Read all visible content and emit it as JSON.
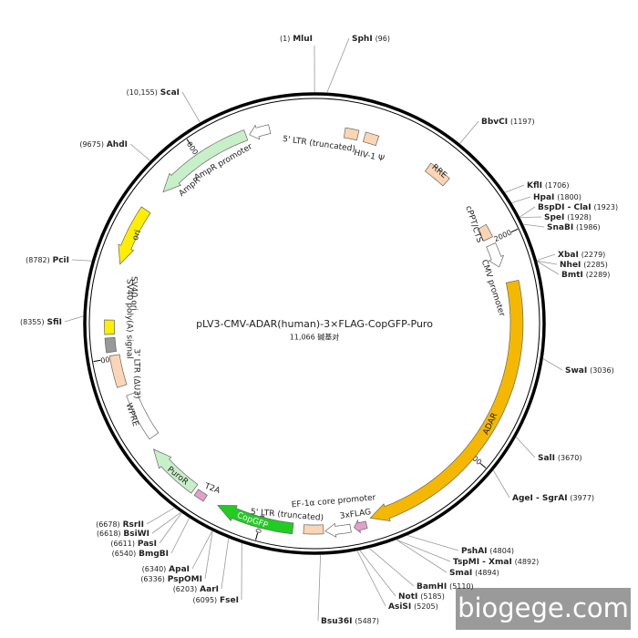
{
  "title": "pLV3-CMV-ADAR(human)-3×FLAG-CopGFP-Puro",
  "length": {
    "value": 11066,
    "label": "11,066 碱基对"
  },
  "ticks": [
    2000,
    4000,
    6000,
    8000,
    {
      "value": 10000,
      "label": "10,000"
    }
  ],
  "sites": [
    {
      "name": "MluI",
      "pos": {
        "value": 1,
        "label": "(1)"
      }
    },
    {
      "name": "SphI",
      "pos": {
        "value": 96,
        "label": "(96)"
      }
    },
    {
      "name": "BbvCI",
      "pos": {
        "value": 1197,
        "label": "(1197)"
      }
    },
    {
      "name": "KflI",
      "pos": {
        "value": 1706,
        "label": "(1706)"
      }
    },
    {
      "name": "HpaI",
      "pos": {
        "value": 1800,
        "label": "(1800)"
      }
    },
    {
      "name": "BspDI - ClaI",
      "pos": {
        "value": 1923,
        "label": "(1923)"
      }
    },
    {
      "name": "SpeI",
      "pos": {
        "value": 1928,
        "label": "(1928)"
      }
    },
    {
      "name": "SnaBI",
      "pos": {
        "value": 1986,
        "label": "(1986)"
      }
    },
    {
      "name": "XbaI",
      "pos": {
        "value": 2279,
        "label": "(2279)"
      }
    },
    {
      "name": "NheI",
      "pos": {
        "value": 2285,
        "label": "(2285)"
      }
    },
    {
      "name": "BmtI",
      "pos": {
        "value": 2289,
        "label": "(2289)"
      }
    },
    {
      "name": "SwaI",
      "pos": {
        "value": 3036,
        "label": "(3036)"
      }
    },
    {
      "name": "SalI",
      "pos": {
        "value": 3670,
        "label": "(3670)"
      }
    },
    {
      "name": "AgeI - SgrAI",
      "pos": {
        "value": 3977,
        "label": "(3977)"
      }
    },
    {
      "name": "PshAI",
      "pos": {
        "value": 4804,
        "label": "(4804)"
      }
    },
    {
      "name": "TspMI - XmaI",
      "pos": {
        "value": 4892,
        "label": "(4892)"
      }
    },
    {
      "name": "SmaI",
      "pos": {
        "value": 4894,
        "label": "(4894)"
      }
    },
    {
      "name": "BamHI",
      "pos": {
        "value": 5110,
        "label": "(5110)"
      }
    },
    {
      "name": "NotI",
      "pos": {
        "value": 5185,
        "label": "(5185)"
      }
    },
    {
      "name": "AsiSI",
      "pos": {
        "value": 5205,
        "label": "(5205)"
      }
    },
    {
      "name": "Bsu36I",
      "pos": {
        "value": 5487,
        "label": "(5487)"
      }
    },
    {
      "name": "FseI",
      "pos": {
        "value": 6095,
        "label": "(6095)"
      }
    },
    {
      "name": "AarI",
      "pos": {
        "value": 6203,
        "label": "(6203)"
      }
    },
    {
      "name": "PspOMI",
      "pos": {
        "value": 6336,
        "label": "(6336)"
      }
    },
    {
      "name": "ApaI",
      "pos": {
        "value": 6340,
        "label": "(6340)"
      }
    },
    {
      "name": "BmgBI",
      "pos": {
        "value": 6540,
        "label": "(6540)"
      }
    },
    {
      "name": "PasI",
      "pos": {
        "value": 6611,
        "label": "(6611)"
      }
    },
    {
      "name": "BsiWI",
      "pos": {
        "value": 6618,
        "label": "(6618)"
      }
    },
    {
      "name": "RsrII",
      "pos": {
        "value": 6678,
        "label": "(6678)"
      }
    },
    {
      "name": "SfiI",
      "pos": {
        "value": 8355,
        "label": "(8355)"
      }
    },
    {
      "name": "PciI",
      "pos": {
        "value": 8782,
        "label": "(8782)"
      }
    },
    {
      "name": "AhdI",
      "pos": {
        "value": 9675,
        "label": "(9675)"
      }
    },
    {
      "name": "ScaI",
      "pos": {
        "value": 10155,
        "label": "(10,155)"
      }
    }
  ],
  "features": [
    "5' LTR (truncated)",
    "HIV-1 Ψ",
    "RRE",
    "cPPT/CTS",
    "CMV promoter",
    "ADAR",
    "3xFLAG",
    "EF-1α core promoter",
    "5' LTR (truncated)",
    "CopGFP",
    "T2A",
    "PuroR",
    "WPRE",
    "3' LTR (ΔU3)",
    "SV40 poly(A) signal",
    "SV40 ori",
    "ori",
    "AmpR",
    "AmpR promoter"
  ],
  "watermark": "biogege.com"
}
